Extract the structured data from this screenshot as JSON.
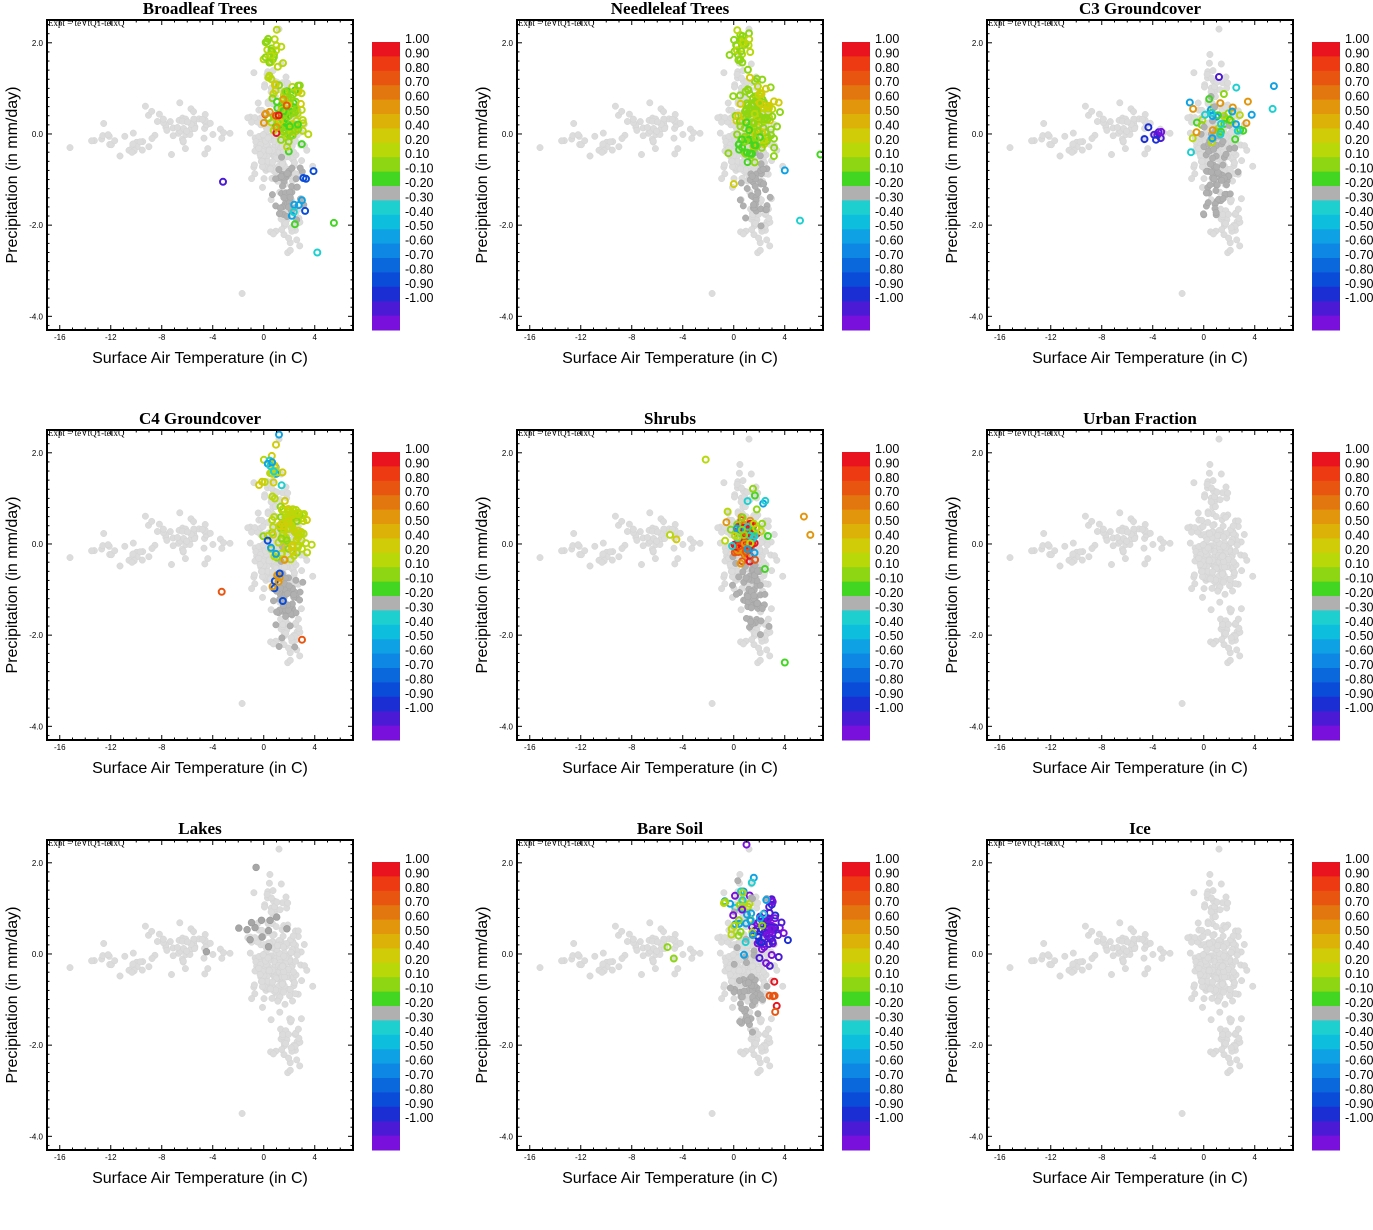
{
  "figure": {
    "subtitle": "Expt = teVtQ1-teIxQ",
    "xlabel": "Surface Air Temperature (in C)",
    "ylabel": "Precipitation (in mm/day)",
    "xticks": [
      "-16",
      "-12",
      "-8",
      "-4",
      "0",
      "4"
    ],
    "xtick_values": [
      -16,
      -12,
      -8,
      -4,
      0,
      4
    ],
    "yticks": [
      "2.0",
      "0.0",
      "-2.0",
      "-4.0"
    ],
    "ytick_values": [
      2,
      0,
      -2,
      -4
    ]
  },
  "colorbar": {
    "labels": [
      "1.00",
      "0.90",
      "0.80",
      "0.70",
      "0.60",
      "0.50",
      "0.40",
      "0.20",
      "0.10",
      "-0.10",
      "-0.20",
      "-0.30",
      "-0.40",
      "-0.50",
      "-0.60",
      "-0.70",
      "-0.80",
      "-0.90",
      "-1.00"
    ],
    "colors": [
      "#e8131f",
      "#ee3a12",
      "#e85511",
      "#e2770f",
      "#e2960c",
      "#dcb208",
      "#d0cd08",
      "#b8d80a",
      "#8ed613",
      "#42d622",
      "#b0b0b0",
      "#1ecfd0",
      "#0ebedd",
      "#0ea2e4",
      "#0e86e4",
      "#0a68dc",
      "#0a4cd8",
      "#1a2ed4",
      "#4a1ad4",
      "#7a10dc"
    ]
  },
  "chart_data": [
    {
      "type": "scatter",
      "title": "Broadleaf Trees",
      "xlim": [
        -17,
        7
      ],
      "ylim": [
        -4.3,
        2.5
      ],
      "xlabel": "Surface Air Temperature (in C)",
      "ylabel": "Precipitation (in mm/day)",
      "pattern": "main_trees",
      "base": "lightgray",
      "highlight": "green-yellow"
    },
    {
      "type": "scatter",
      "title": "Needleleaf Trees",
      "xlim": [
        -17,
        7
      ],
      "ylim": [
        -4.3,
        2.5
      ],
      "xlabel": "Surface Air Temperature (in C)",
      "ylabel": "Precipitation (in mm/day)",
      "pattern": "main_trees",
      "base": "lightgray",
      "highlight": "green"
    },
    {
      "type": "scatter",
      "title": "C3 Groundcover",
      "xlim": [
        -17,
        7
      ],
      "ylim": [
        -4.3,
        2.5
      ],
      "xlabel": "Surface Air Temperature (in C)",
      "ylabel": "Precipitation (in mm/day)",
      "pattern": "c3",
      "base": "lightgray",
      "highlight": "mixed"
    },
    {
      "type": "scatter",
      "title": "C4 Groundcover",
      "xlim": [
        -17,
        7
      ],
      "ylim": [
        -4.3,
        2.5
      ],
      "xlabel": "Surface Air Temperature (in C)",
      "ylabel": "Precipitation (in mm/day)",
      "pattern": "c4",
      "base": "lightgray",
      "highlight": "yellow"
    },
    {
      "type": "scatter",
      "title": "Shrubs",
      "xlim": [
        -17,
        7
      ],
      "ylim": [
        -4.3,
        2.5
      ],
      "xlabel": "Surface Air Temperature (in C)",
      "ylabel": "Precipitation (in mm/day)",
      "pattern": "shrubs",
      "base": "lightgray",
      "highlight": "orange-red"
    },
    {
      "type": "scatter",
      "title": "Urban Fraction",
      "xlim": [
        -17,
        7
      ],
      "ylim": [
        -4.3,
        2.5
      ],
      "xlabel": "Surface Air Temperature (in C)",
      "ylabel": "Precipitation (in mm/day)",
      "pattern": "none",
      "base": "lightgray",
      "highlight": "none"
    },
    {
      "type": "scatter",
      "title": "Lakes",
      "xlim": [
        -17,
        7
      ],
      "ylim": [
        -4.3,
        2.5
      ],
      "xlabel": "Surface Air Temperature (in C)",
      "ylabel": "Precipitation (in mm/day)",
      "pattern": "lakes",
      "base": "lightgray",
      "highlight": "gray"
    },
    {
      "type": "scatter",
      "title": "Bare Soil",
      "xlim": [
        -17,
        7
      ],
      "ylim": [
        -4.3,
        2.5
      ],
      "xlabel": "Surface Air Temperature (in C)",
      "ylabel": "Precipitation (in mm/day)",
      "pattern": "bare",
      "base": "lightgray",
      "highlight": "purple-cyan"
    },
    {
      "type": "scatter",
      "title": "Ice",
      "xlim": [
        -17,
        7
      ],
      "ylim": [
        -4.3,
        2.5
      ],
      "xlabel": "Surface Air Temperature (in C)",
      "ylabel": "Precipitation (in mm/day)",
      "pattern": "none",
      "base": "lightgray",
      "highlight": "none"
    }
  ]
}
